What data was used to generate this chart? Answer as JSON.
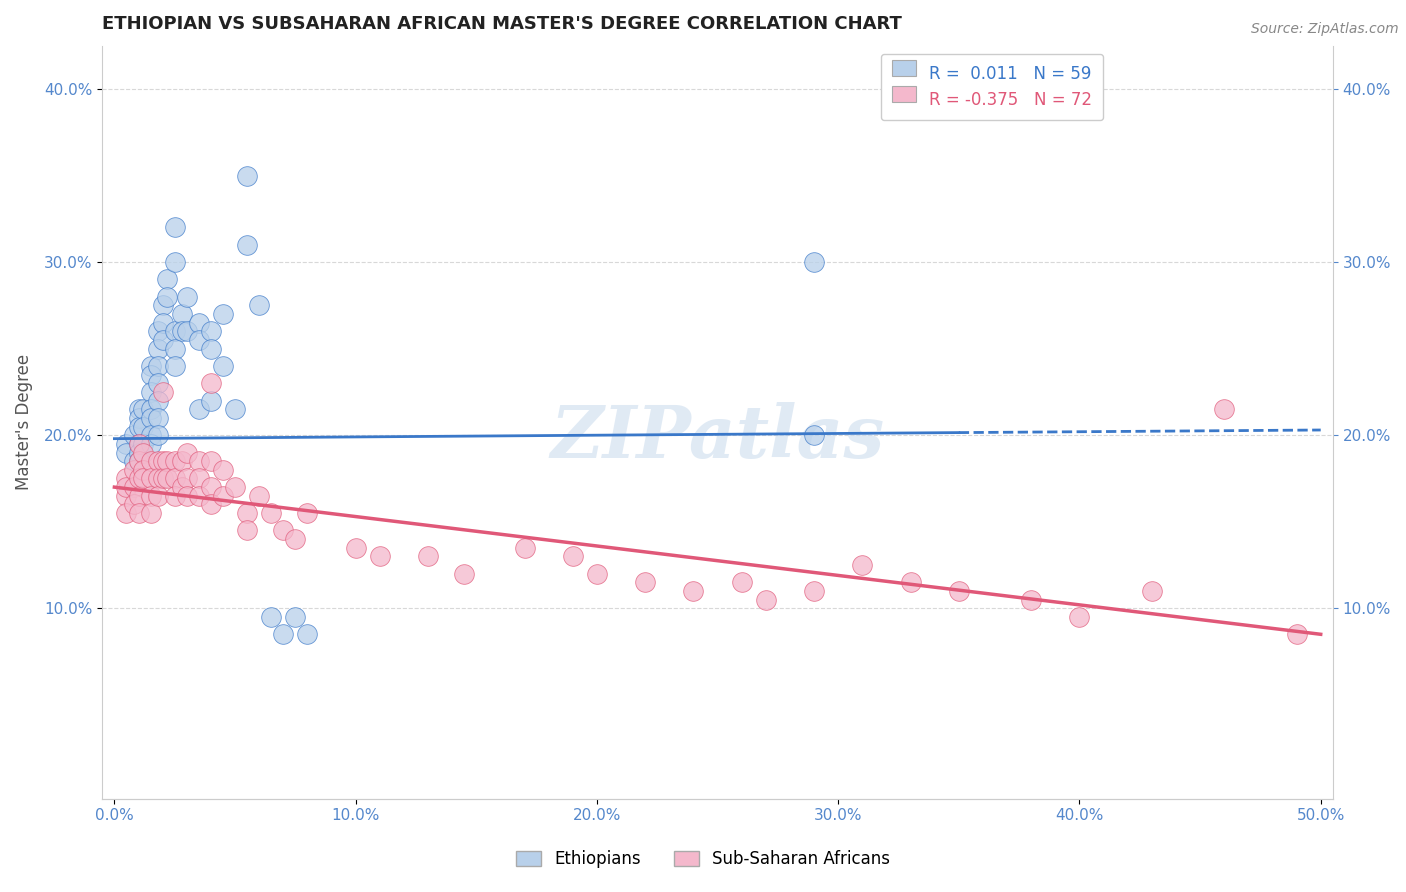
{
  "title": "ETHIOPIAN VS SUBSAHARAN AFRICAN MASTER'S DEGREE CORRELATION CHART",
  "source": "Source: ZipAtlas.com",
  "xlabel_ticks": [
    "0.0%",
    "10.0%",
    "20.0%",
    "30.0%",
    "40.0%",
    "50.0%"
  ],
  "xlabel_vals": [
    0.0,
    0.1,
    0.2,
    0.3,
    0.4,
    0.5
  ],
  "ylabel_ticks": [
    "10.0%",
    "20.0%",
    "30.0%",
    "40.0%"
  ],
  "ylabel_vals": [
    0.1,
    0.2,
    0.3,
    0.4
  ],
  "xlim": [
    -0.005,
    0.505
  ],
  "ylim": [
    -0.01,
    0.425
  ],
  "blue_R": 0.011,
  "blue_N": 59,
  "pink_R": -0.375,
  "pink_N": 72,
  "blue_color": "#b8d0ea",
  "pink_color": "#f4b8cc",
  "blue_line_color": "#3a78c9",
  "pink_line_color": "#e05878",
  "blue_trend_x": [
    0.0,
    0.5
  ],
  "blue_trend_y": [
    0.198,
    0.203
  ],
  "pink_trend_x": [
    0.0,
    0.5
  ],
  "pink_trend_y": [
    0.17,
    0.085
  ],
  "blue_scatter": [
    [
      0.005,
      0.195
    ],
    [
      0.005,
      0.19
    ],
    [
      0.008,
      0.185
    ],
    [
      0.008,
      0.2
    ],
    [
      0.01,
      0.215
    ],
    [
      0.01,
      0.21
    ],
    [
      0.01,
      0.205
    ],
    [
      0.01,
      0.195
    ],
    [
      0.01,
      0.19
    ],
    [
      0.01,
      0.185
    ],
    [
      0.012,
      0.215
    ],
    [
      0.012,
      0.205
    ],
    [
      0.012,
      0.195
    ],
    [
      0.015,
      0.24
    ],
    [
      0.015,
      0.235
    ],
    [
      0.015,
      0.225
    ],
    [
      0.015,
      0.215
    ],
    [
      0.015,
      0.21
    ],
    [
      0.015,
      0.2
    ],
    [
      0.015,
      0.195
    ],
    [
      0.018,
      0.26
    ],
    [
      0.018,
      0.25
    ],
    [
      0.018,
      0.24
    ],
    [
      0.018,
      0.23
    ],
    [
      0.018,
      0.22
    ],
    [
      0.018,
      0.21
    ],
    [
      0.018,
      0.2
    ],
    [
      0.02,
      0.275
    ],
    [
      0.02,
      0.265
    ],
    [
      0.02,
      0.255
    ],
    [
      0.022,
      0.29
    ],
    [
      0.022,
      0.28
    ],
    [
      0.025,
      0.32
    ],
    [
      0.025,
      0.3
    ],
    [
      0.025,
      0.26
    ],
    [
      0.025,
      0.25
    ],
    [
      0.025,
      0.24
    ],
    [
      0.028,
      0.27
    ],
    [
      0.028,
      0.26
    ],
    [
      0.03,
      0.28
    ],
    [
      0.03,
      0.26
    ],
    [
      0.035,
      0.265
    ],
    [
      0.035,
      0.255
    ],
    [
      0.035,
      0.215
    ],
    [
      0.04,
      0.26
    ],
    [
      0.04,
      0.25
    ],
    [
      0.04,
      0.22
    ],
    [
      0.045,
      0.27
    ],
    [
      0.045,
      0.24
    ],
    [
      0.05,
      0.215
    ],
    [
      0.055,
      0.35
    ],
    [
      0.055,
      0.31
    ],
    [
      0.06,
      0.275
    ],
    [
      0.065,
      0.095
    ],
    [
      0.07,
      0.085
    ],
    [
      0.075,
      0.095
    ],
    [
      0.08,
      0.085
    ],
    [
      0.29,
      0.3
    ],
    [
      0.29,
      0.2
    ]
  ],
  "pink_scatter": [
    [
      0.005,
      0.165
    ],
    [
      0.005,
      0.155
    ],
    [
      0.005,
      0.175
    ],
    [
      0.005,
      0.17
    ],
    [
      0.008,
      0.18
    ],
    [
      0.008,
      0.17
    ],
    [
      0.008,
      0.16
    ],
    [
      0.01,
      0.195
    ],
    [
      0.01,
      0.185
    ],
    [
      0.01,
      0.175
    ],
    [
      0.01,
      0.165
    ],
    [
      0.01,
      0.155
    ],
    [
      0.012,
      0.19
    ],
    [
      0.012,
      0.18
    ],
    [
      0.012,
      0.175
    ],
    [
      0.015,
      0.185
    ],
    [
      0.015,
      0.175
    ],
    [
      0.015,
      0.165
    ],
    [
      0.015,
      0.155
    ],
    [
      0.018,
      0.185
    ],
    [
      0.018,
      0.175
    ],
    [
      0.018,
      0.165
    ],
    [
      0.02,
      0.225
    ],
    [
      0.02,
      0.185
    ],
    [
      0.02,
      0.175
    ],
    [
      0.022,
      0.185
    ],
    [
      0.022,
      0.175
    ],
    [
      0.025,
      0.185
    ],
    [
      0.025,
      0.175
    ],
    [
      0.025,
      0.165
    ],
    [
      0.028,
      0.185
    ],
    [
      0.028,
      0.17
    ],
    [
      0.03,
      0.19
    ],
    [
      0.03,
      0.175
    ],
    [
      0.03,
      0.165
    ],
    [
      0.035,
      0.185
    ],
    [
      0.035,
      0.175
    ],
    [
      0.035,
      0.165
    ],
    [
      0.04,
      0.23
    ],
    [
      0.04,
      0.185
    ],
    [
      0.04,
      0.17
    ],
    [
      0.04,
      0.16
    ],
    [
      0.045,
      0.18
    ],
    [
      0.045,
      0.165
    ],
    [
      0.05,
      0.17
    ],
    [
      0.055,
      0.155
    ],
    [
      0.055,
      0.145
    ],
    [
      0.06,
      0.165
    ],
    [
      0.065,
      0.155
    ],
    [
      0.07,
      0.145
    ],
    [
      0.075,
      0.14
    ],
    [
      0.08,
      0.155
    ],
    [
      0.1,
      0.135
    ],
    [
      0.11,
      0.13
    ],
    [
      0.13,
      0.13
    ],
    [
      0.145,
      0.12
    ],
    [
      0.17,
      0.135
    ],
    [
      0.19,
      0.13
    ],
    [
      0.2,
      0.12
    ],
    [
      0.22,
      0.115
    ],
    [
      0.24,
      0.11
    ],
    [
      0.26,
      0.115
    ],
    [
      0.27,
      0.105
    ],
    [
      0.29,
      0.11
    ],
    [
      0.31,
      0.125
    ],
    [
      0.33,
      0.115
    ],
    [
      0.35,
      0.11
    ],
    [
      0.38,
      0.105
    ],
    [
      0.4,
      0.095
    ],
    [
      0.43,
      0.11
    ],
    [
      0.46,
      0.215
    ],
    [
      0.49,
      0.085
    ]
  ],
  "watermark": "ZIPatlas",
  "legend_label_blue": "Ethiopians",
  "legend_label_pink": "Sub-Saharan Africans",
  "background_color": "#ffffff",
  "grid_color": "#d8d8d8"
}
